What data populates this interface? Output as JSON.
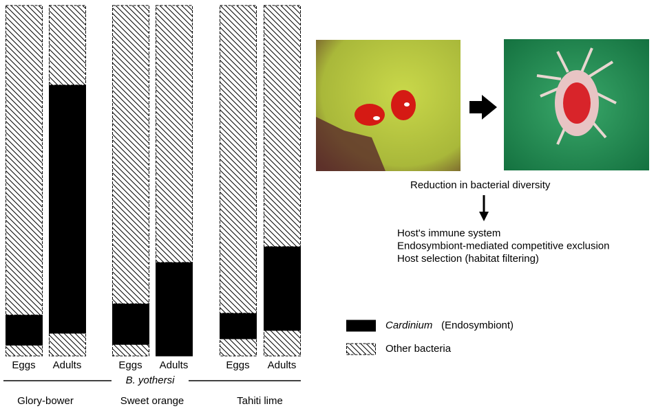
{
  "chart_data": {
    "type": "bar",
    "stacked": true,
    "categories": [
      "Eggs",
      "Adults",
      "Eggs",
      "Adults",
      "Eggs",
      "Adults"
    ],
    "groups": [
      "Glory-bower",
      "Sweet orange",
      "Tahiti lime"
    ],
    "group_axis_label": "B. yothersi",
    "ylim": [
      0,
      100
    ],
    "series": [
      {
        "name": "Other bacteria",
        "pattern": "hatch",
        "values": [
          3.1,
          6.5,
          3.3,
          0,
          4.9,
          7.3
        ]
      },
      {
        "name": "Cardinium",
        "name_note": "(Endosymbiont)",
        "color": "#000000",
        "values": [
          8.6,
          70.8,
          11.6,
          26.7,
          7.3,
          23.9
        ]
      },
      {
        "name": "Other bacteria",
        "pattern": "hatch",
        "values": [
          88.3,
          22.7,
          85.1,
          73.3,
          87.8,
          68.8
        ]
      }
    ],
    "annotations": {
      "effect": "Reduction in bacterial diversity",
      "causes": [
        "Host's immune system",
        "Endosymbiont-mediated competitive exclusion",
        "Host selection (habitat filtering)"
      ]
    }
  }
}
